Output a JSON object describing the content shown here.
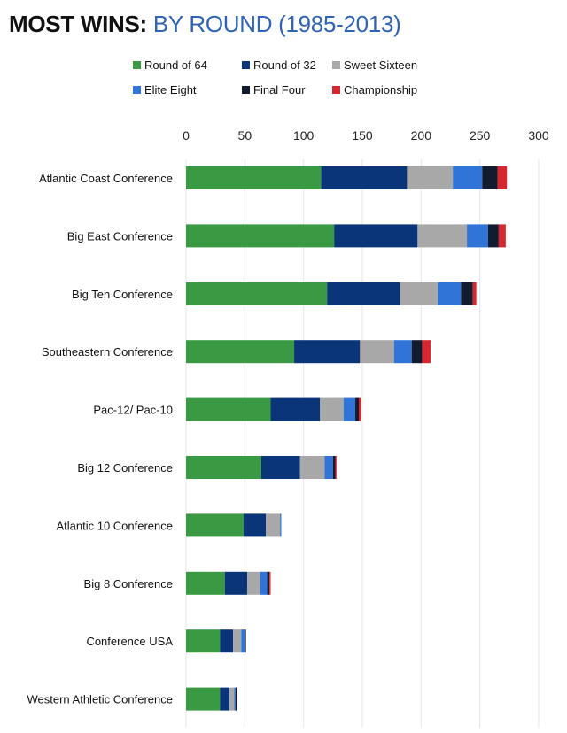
{
  "title": {
    "main": "MOST WINS:",
    "sub": "BY ROUND (1985-2013)"
  },
  "colors": {
    "Round of 64": "#3a9a43",
    "Round of 32": "#0a3578",
    "Sweet Sixteen": "#a8a8a8",
    "Elite Eight": "#2f74d6",
    "Final Four": "#131c2e",
    "Championship": "#d6262f",
    "grid": "#e6e6e6"
  },
  "chart_data": {
    "type": "bar",
    "orientation": "horizontal",
    "stacked": true,
    "title": "MOST WINS: BY ROUND (1985-2013)",
    "xlim": [
      0,
      300
    ],
    "xticks": [
      0,
      50,
      100,
      150,
      200,
      250,
      300
    ],
    "grid": true,
    "legend_position": "top",
    "categories": [
      "Atlantic Coast Conference",
      "Big East Conference",
      "Big Ten Conference",
      "Southeastern Conference",
      "Pac-12/ Pac-10",
      "Big 12 Conference",
      "Atlantic 10 Conference",
      "Big 8 Conference",
      "Conference USA",
      "Western Athletic Conference"
    ],
    "series": [
      {
        "name": "Round of 64",
        "values": [
          115,
          126,
          120,
          92,
          72,
          64,
          49,
          33,
          29,
          29
        ]
      },
      {
        "name": "Round of 32",
        "values": [
          73,
          71,
          62,
          56,
          42,
          33,
          19,
          19,
          11,
          8
        ]
      },
      {
        "name": "Sweet Sixteen",
        "values": [
          39,
          42,
          32,
          29,
          20,
          21,
          12,
          11,
          7,
          4
        ]
      },
      {
        "name": "Elite Eight",
        "values": [
          25,
          18,
          20,
          15,
          10,
          7,
          1,
          6,
          3,
          1
        ]
      },
      {
        "name": "Final Four",
        "values": [
          13,
          9,
          10,
          9,
          3,
          2,
          0,
          2,
          1,
          1
        ]
      },
      {
        "name": "Championship",
        "values": [
          8,
          6,
          3,
          7,
          2,
          1,
          0,
          1,
          0,
          0
        ]
      }
    ]
  }
}
